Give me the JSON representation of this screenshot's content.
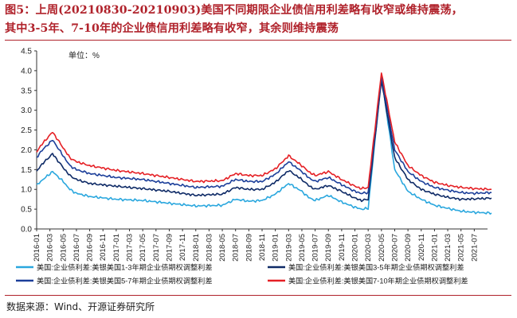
{
  "figure": {
    "title_line1": "图5：上周(20210830-20210903)美国不同期限企业债信用利差略有收窄或维持震荡，",
    "title_line2": "其中3-5年、7-10年的企业债信用利差略有收窄，其余则维持震荡",
    "source": "数据来源：Wind、开源证券研究所"
  },
  "chart_data": {
    "type": "line",
    "unit_label": "单位：%",
    "ylim": [
      0,
      4.5
    ],
    "yticks": [
      "0.0",
      "0.5",
      "1.0",
      "1.5",
      "2.0",
      "2.5",
      "3.0",
      "3.5",
      "4.0",
      "4.5"
    ],
    "xticks": [
      "2016-01",
      "2016-03",
      "2016-05",
      "2016-07",
      "2016-09",
      "2016-11",
      "2017-01",
      "2017-03",
      "2017-05",
      "2017-07",
      "2017-09",
      "2017-11",
      "2018-01",
      "2018-03",
      "2018-05",
      "2018-07",
      "2018-09",
      "2018-11",
      "2019-01",
      "2019-03",
      "2019-05",
      "2019-07",
      "2019-09",
      "2019-11",
      "2020-01",
      "2020-03",
      "2020-05",
      "2020-07",
      "2020-09",
      "2020-11",
      "2021-01",
      "2021-03",
      "2021-05",
      "2021-07"
    ],
    "legend_position": "bottom",
    "series": [
      {
        "name": "美国:企业债利差:美银美国1-3年期企业债期权调整利差",
        "color": "#2aa7de",
        "t": [
          0,
          0.3,
          1.2,
          2,
          2.5,
          3,
          4,
          6,
          8,
          10,
          12,
          14,
          15,
          16,
          17,
          18,
          19,
          20,
          20.5,
          21,
          22,
          23,
          24,
          24.5,
          25,
          26,
          27,
          28,
          29,
          30,
          31,
          32,
          33,
          34.3
        ],
        "values": [
          1.1,
          1.2,
          1.45,
          1.2,
          1.0,
          0.9,
          0.82,
          0.75,
          0.72,
          0.65,
          0.58,
          0.6,
          0.75,
          0.7,
          0.72,
          0.88,
          1.15,
          0.95,
          0.8,
          0.72,
          0.85,
          0.68,
          0.55,
          0.5,
          0.52,
          3.85,
          1.5,
          0.95,
          0.75,
          0.6,
          0.52,
          0.45,
          0.42,
          0.4
        ]
      },
      {
        "name": "美国:企业债利差:美银美国3-5年期企业债期权调整利差",
        "color": "#0e2a66",
        "t": [
          0,
          0.3,
          1.2,
          2,
          2.5,
          3,
          4,
          6,
          8,
          10,
          12,
          14,
          15,
          16,
          17,
          18,
          19,
          20,
          20.5,
          21,
          22,
          23,
          24,
          24.5,
          25,
          26,
          27,
          28,
          29,
          30,
          31,
          32,
          33,
          34.3
        ],
        "values": [
          1.45,
          1.6,
          1.9,
          1.55,
          1.35,
          1.25,
          1.15,
          1.08,
          1.02,
          0.95,
          0.85,
          0.88,
          1.05,
          1.0,
          1.0,
          1.18,
          1.48,
          1.25,
          1.1,
          1.0,
          1.1,
          0.95,
          0.78,
          0.72,
          0.75,
          3.75,
          1.8,
          1.25,
          1.0,
          0.88,
          0.8,
          0.75,
          0.76,
          0.78
        ]
      },
      {
        "name": "美国:企业债利差:美银美国5-7年期企业债期权调整利差",
        "color": "#1c3f9a",
        "t": [
          0,
          0.3,
          1.2,
          2,
          2.5,
          3,
          4,
          6,
          8,
          10,
          12,
          14,
          15,
          16,
          17,
          18,
          19,
          20,
          20.5,
          21,
          22,
          23,
          24,
          24.5,
          25,
          26,
          27,
          28,
          29,
          30,
          31,
          32,
          33,
          34.3
        ],
        "values": [
          1.8,
          1.95,
          2.25,
          1.85,
          1.6,
          1.5,
          1.4,
          1.3,
          1.25,
          1.15,
          1.05,
          1.08,
          1.25,
          1.2,
          1.2,
          1.38,
          1.7,
          1.45,
          1.3,
          1.2,
          1.3,
          1.12,
          0.95,
          0.9,
          0.92,
          3.85,
          2.0,
          1.45,
          1.2,
          1.05,
          0.98,
          0.92,
          0.9,
          0.92
        ]
      },
      {
        "name": "美国:企业债利差:美银美国7-10年期企业债期权调整利差",
        "color": "#e52025",
        "t": [
          0,
          0.3,
          1.2,
          2,
          2.5,
          3,
          4,
          6,
          8,
          10,
          12,
          14,
          15,
          16,
          17,
          18,
          19,
          20,
          20.5,
          21,
          22,
          23,
          24,
          24.5,
          25,
          26,
          27,
          28,
          29,
          30,
          31,
          32,
          33,
          34.3
        ],
        "values": [
          1.95,
          2.1,
          2.45,
          2.05,
          1.8,
          1.7,
          1.6,
          1.48,
          1.4,
          1.3,
          1.2,
          1.22,
          1.4,
          1.35,
          1.35,
          1.52,
          1.85,
          1.6,
          1.45,
          1.35,
          1.45,
          1.25,
          1.08,
          1.02,
          1.05,
          3.95,
          2.2,
          1.6,
          1.35,
          1.18,
          1.1,
          1.05,
          1.02,
          1.0
        ]
      }
    ]
  }
}
